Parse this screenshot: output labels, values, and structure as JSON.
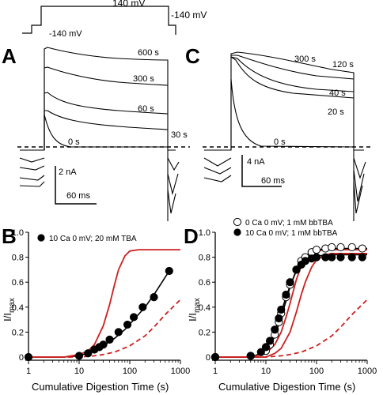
{
  "protocol": {
    "labels": {
      "hold_left": "-140 mV",
      "step": "140 mV",
      "hold_right": "-140 mV"
    }
  },
  "panels": {
    "A": {
      "letter": "A",
      "time_labels": [
        "600 s",
        "300 s",
        "60 s",
        "30 s",
        "0 s"
      ],
      "scale_current": "2 nA",
      "scale_time": "60 ms"
    },
    "C": {
      "letter": "C",
      "time_labels": [
        "300 s",
        "120 s",
        "40 s",
        "20 s",
        "0 s"
      ],
      "scale_current": "4 nA",
      "scale_time": "60 ms"
    }
  },
  "chart_data": [
    {
      "type": "scatter",
      "panel": "B",
      "letter": "B",
      "xlabel": "Cumulative Digestion Time (s)",
      "ylabel_main": "I/I",
      "ylabel_sub": "max",
      "xscale": "log",
      "xlim": [
        1,
        1000
      ],
      "ylim": [
        0,
        1.0
      ],
      "xticks": [
        1,
        10,
        100,
        1000
      ],
      "xtick_labels": [
        "1",
        "10",
        "100",
        "1000"
      ],
      "yticks": [
        0,
        0.2,
        0.4,
        0.6,
        0.8,
        1.0
      ],
      "ytick_labels": [
        "0",
        "0.2",
        "0.4",
        "0.6",
        "0.8",
        "1.0"
      ],
      "legend": [
        {
          "label": "10 Ca 0 mV; 20 mM TBA",
          "marker": "filled-circle"
        }
      ],
      "series": [
        {
          "name": "10 Ca 0 mV; 20 mM TBA",
          "marker": "filled-circle",
          "color": "#000000",
          "x": [
            1,
            10,
            15,
            20,
            25,
            30,
            40,
            60,
            90,
            120,
            180,
            300,
            600
          ],
          "y": [
            0.0,
            0.01,
            0.03,
            0.06,
            0.08,
            0.1,
            0.14,
            0.2,
            0.26,
            0.32,
            0.4,
            0.48,
            0.69
          ]
        },
        {
          "style": "fit-line",
          "color": "#000000",
          "x": [
            1,
            5,
            10,
            20,
            30,
            50,
            80,
            120,
            200,
            300,
            450,
            600
          ],
          "y": [
            0.0,
            0.0,
            0.01,
            0.05,
            0.09,
            0.15,
            0.22,
            0.3,
            0.4,
            0.5,
            0.61,
            0.69
          ]
        },
        {
          "style": "red-solid",
          "color": "#cc1f1f",
          "x": [
            1,
            5,
            10,
            15,
            20,
            30,
            40,
            50,
            60,
            80,
            100,
            150,
            200,
            1000
          ],
          "y": [
            0.0,
            0.0,
            0.02,
            0.05,
            0.1,
            0.25,
            0.42,
            0.58,
            0.7,
            0.81,
            0.85,
            0.86,
            0.86,
            0.86
          ]
        },
        {
          "style": "red-dashed",
          "color": "#cc1f1f",
          "x": [
            1,
            10,
            20,
            30,
            50,
            100,
            200,
            300,
            500,
            1000
          ],
          "y": [
            0.0,
            0.0,
            0.01,
            0.02,
            0.04,
            0.09,
            0.17,
            0.24,
            0.34,
            0.46
          ]
        }
      ]
    },
    {
      "type": "scatter",
      "panel": "D",
      "letter": "D",
      "xlabel": "Cumulative Digestion Time (s)",
      "ylabel_main": "I/I",
      "ylabel_sub": "max",
      "xscale": "log",
      "xlim": [
        1,
        1000
      ],
      "ylim": [
        0,
        1.0
      ],
      "xticks": [
        1,
        10,
        100,
        1000
      ],
      "xtick_labels": [
        "1",
        "10",
        "100",
        "1000"
      ],
      "yticks": [
        0,
        0.2,
        0.4,
        0.6,
        0.8,
        1.0
      ],
      "ytick_labels": [
        "0",
        "0.2",
        "0.4",
        "0.6",
        "0.8",
        "1.0"
      ],
      "legend": [
        {
          "label": "0 Ca 0 mV; 1 mM bbTBA",
          "marker": "open-circle"
        },
        {
          "label": "10 Ca 0 mV; 1 mM bbTBA",
          "marker": "filled-circle"
        }
      ],
      "series": [
        {
          "name": "0 Ca 0 mV; 1 mM bbTBA",
          "marker": "open-circle",
          "color": "#000000",
          "x": [
            1,
            5,
            10,
            12,
            15,
            18,
            20,
            25,
            30,
            40,
            50,
            60,
            80,
            100,
            150,
            200,
            300,
            500,
            800
          ],
          "y": [
            0.0,
            0.01,
            0.05,
            0.1,
            0.18,
            0.28,
            0.35,
            0.48,
            0.58,
            0.7,
            0.77,
            0.8,
            0.84,
            0.86,
            0.87,
            0.88,
            0.88,
            0.88,
            0.87
          ]
        },
        {
          "name": "10 Ca 0 mV; 1 mM bbTBA",
          "marker": "filled-circle",
          "color": "#000000",
          "x": [
            1,
            5,
            8,
            10,
            12,
            15,
            18,
            20,
            25,
            30,
            40,
            50,
            60,
            80,
            100,
            150,
            200,
            300,
            500,
            800
          ],
          "y": [
            0.0,
            0.01,
            0.04,
            0.08,
            0.13,
            0.22,
            0.31,
            0.38,
            0.5,
            0.6,
            0.7,
            0.74,
            0.77,
            0.79,
            0.8,
            0.8,
            0.8,
            0.8,
            0.8,
            0.8
          ]
        },
        {
          "style": "fit-line",
          "color": "#000000",
          "x": [
            1,
            5,
            8,
            10,
            13,
            16,
            20,
            25,
            30,
            40,
            50,
            70,
            100,
            200,
            1000
          ],
          "y": [
            0.0,
            0.0,
            0.03,
            0.07,
            0.14,
            0.24,
            0.36,
            0.48,
            0.57,
            0.69,
            0.75,
            0.79,
            0.81,
            0.82,
            0.82
          ]
        },
        {
          "style": "fit-line",
          "color": "#000000",
          "x": [
            1,
            5,
            8,
            10,
            13,
            16,
            20,
            25,
            30,
            40,
            50,
            70,
            100,
            200,
            1000
          ],
          "y": [
            0.0,
            0.0,
            0.02,
            0.05,
            0.11,
            0.2,
            0.32,
            0.45,
            0.56,
            0.7,
            0.77,
            0.83,
            0.86,
            0.87,
            0.87
          ]
        },
        {
          "style": "red-solid",
          "color": "#cc1f1f",
          "x": [
            1,
            5,
            10,
            15,
            20,
            25,
            30,
            40,
            50,
            60,
            80,
            100,
            150,
            1000
          ],
          "y": [
            0.0,
            0.0,
            0.03,
            0.1,
            0.2,
            0.32,
            0.43,
            0.62,
            0.73,
            0.79,
            0.84,
            0.85,
            0.86,
            0.86
          ]
        },
        {
          "style": "red-solid",
          "color": "#cc1f1f",
          "x": [
            1,
            10,
            15,
            20,
            30,
            40,
            50,
            60,
            80,
            100,
            150,
            200,
            1000
          ],
          "y": [
            0.0,
            0.0,
            0.03,
            0.07,
            0.2,
            0.36,
            0.5,
            0.6,
            0.72,
            0.78,
            0.82,
            0.83,
            0.83
          ]
        },
        {
          "style": "red-dashed",
          "color": "#cc1f1f",
          "x": [
            1,
            10,
            20,
            30,
            50,
            100,
            200,
            300,
            500,
            1000
          ],
          "y": [
            0.0,
            0.0,
            0.01,
            0.02,
            0.04,
            0.09,
            0.17,
            0.24,
            0.34,
            0.46
          ]
        }
      ]
    }
  ]
}
